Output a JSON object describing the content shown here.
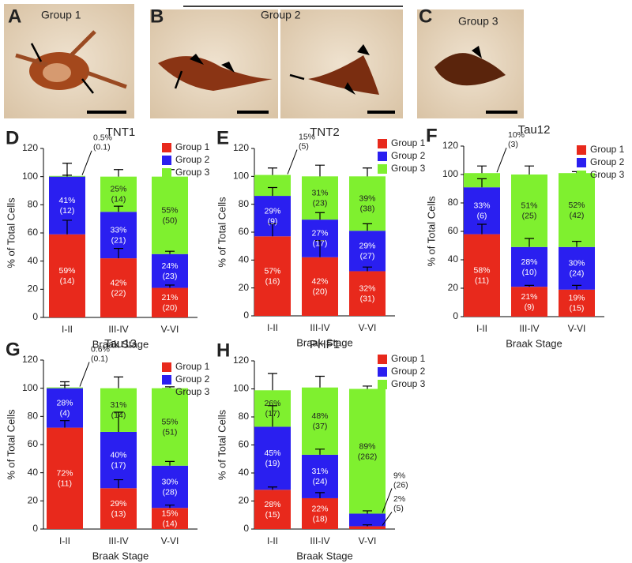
{
  "panels": [
    {
      "letter": "A",
      "title": "Group 1"
    },
    {
      "letter": "B",
      "title": "Group 2"
    },
    {
      "letter": "C",
      "title": "Group 3"
    }
  ],
  "chart_data": [
    {
      "type": "bar",
      "stacked": true,
      "panel": "D",
      "title": "TNT1",
      "categories": [
        "I-II",
        "III-IV",
        "V-VI"
      ],
      "xlabel": "Braak Stage",
      "ylabel": "% of Total Cells",
      "ylim": [
        0,
        120
      ],
      "yticks": [
        0,
        20,
        40,
        60,
        80,
        100,
        120
      ],
      "legend": "upper right",
      "series": [
        {
          "name": "Group 1",
          "color": "#e8291c",
          "values": [
            59,
            42,
            21
          ],
          "errors": [
            10,
            7,
            2
          ],
          "value_labels": [
            "59%",
            "42%",
            "21%"
          ],
          "count_labels": [
            "(14)",
            "(22)",
            "(20)"
          ]
        },
        {
          "name": "Group 2",
          "color": "#2a1ff0",
          "values": [
            41,
            33,
            24
          ],
          "errors": [
            1,
            4,
            2
          ],
          "value_labels": [
            "41%",
            "33%",
            "24%"
          ],
          "count_labels": [
            "(12)",
            "(21)",
            "(23)"
          ]
        },
        {
          "name": "Group 3",
          "color": "#7ff02f",
          "values": [
            0.5,
            25,
            55
          ],
          "errors": [
            9,
            5,
            5
          ],
          "value_labels": [
            "0.5%",
            "25%",
            "55%"
          ],
          "count_labels": [
            "(0.1)",
            "(14)",
            "(50)"
          ]
        }
      ]
    },
    {
      "type": "bar",
      "stacked": true,
      "panel": "E",
      "title": "TNT2",
      "categories": [
        "I-II",
        "III-IV",
        "V-VI"
      ],
      "xlabel": "Braak Stage",
      "ylabel": "% of Total Cells",
      "ylim": [
        0,
        120
      ],
      "yticks": [
        0,
        20,
        40,
        60,
        80,
        100,
        120
      ],
      "legend": "upper right",
      "series": [
        {
          "name": "Group 1",
          "color": "#e8291c",
          "values": [
            57,
            42,
            32
          ],
          "errors": [
            9,
            12,
            3
          ],
          "value_labels": [
            "57%",
            "42%",
            "32%"
          ],
          "count_labels": [
            "(16)",
            "(20)",
            "(31)"
          ]
        },
        {
          "name": "Group 2",
          "color": "#2a1ff0",
          "values": [
            29,
            27,
            29
          ],
          "errors": [
            6,
            5,
            5
          ],
          "value_labels": [
            "29%",
            "27%",
            "29%"
          ],
          "count_labels": [
            "(9)",
            "(17)",
            "(27)"
          ]
        },
        {
          "name": "Group 3",
          "color": "#7ff02f",
          "values": [
            15,
            31,
            39
          ],
          "errors": [
            5,
            8,
            6
          ],
          "value_labels": [
            "15%",
            "31%",
            "39%"
          ],
          "count_labels": [
            "(5)",
            "(23)",
            "(38)"
          ]
        }
      ]
    },
    {
      "type": "bar",
      "stacked": true,
      "panel": "F",
      "title": "Tau12",
      "categories": [
        "I-II",
        "III-IV",
        "V-VI"
      ],
      "xlabel": "Braak Stage",
      "ylabel": "% of Total Cells",
      "ylim": [
        0,
        120
      ],
      "yticks": [
        0,
        20,
        40,
        60,
        80,
        100,
        120
      ],
      "legend": "upper right",
      "series": [
        {
          "name": "Group 1",
          "color": "#e8291c",
          "values": [
            58,
            21,
            19
          ],
          "errors": [
            7,
            1,
            3
          ],
          "value_labels": [
            "58%",
            "21%",
            "19%"
          ],
          "count_labels": [
            "(11)",
            "(9)",
            "(15)"
          ]
        },
        {
          "name": "Group 2",
          "color": "#2a1ff0",
          "values": [
            33,
            28,
            30
          ],
          "errors": [
            6,
            6,
            4
          ],
          "value_labels": [
            "33%",
            "28%",
            "30%"
          ],
          "count_labels": [
            "(6)",
            "(10)",
            "(24)"
          ]
        },
        {
          "name": "Group 3",
          "color": "#7ff02f",
          "values": [
            10,
            51,
            52
          ],
          "errors": [
            5,
            6,
            1
          ],
          "value_labels": [
            "10%",
            "51%",
            "52%"
          ],
          "count_labels": [
            "(3)",
            "(25)",
            "(42)"
          ]
        }
      ]
    },
    {
      "type": "bar",
      "stacked": true,
      "panel": "G",
      "title": "Tau13",
      "categories": [
        "I-II",
        "III-IV",
        "V-VI"
      ],
      "xlabel": "Braak Stage",
      "ylabel": "% of Total Cells",
      "ylim": [
        0,
        120
      ],
      "yticks": [
        0,
        20,
        40,
        60,
        80,
        100,
        120
      ],
      "legend": "upper right",
      "series": [
        {
          "name": "Group 1",
          "color": "#e8291c",
          "values": [
            72,
            29,
            15
          ],
          "errors": [
            5,
            6,
            2
          ],
          "value_labels": [
            "72%",
            "29%",
            "15%"
          ],
          "count_labels": [
            "(11)",
            "(13)",
            "(14)"
          ]
        },
        {
          "name": "Group 2",
          "color": "#2a1ff0",
          "values": [
            28,
            40,
            30
          ],
          "errors": [
            2,
            14,
            3
          ],
          "value_labels": [
            "28%",
            "40%",
            "30%"
          ],
          "count_labels": [
            "(4)",
            "(17)",
            "(28)"
          ]
        },
        {
          "name": "Group 3",
          "color": "#7ff02f",
          "values": [
            0.6,
            31,
            55
          ],
          "errors": [
            4,
            8,
            1
          ],
          "value_labels": [
            "0.6%",
            "31%",
            "55%"
          ],
          "count_labels": [
            "(0.1)",
            "(14)",
            "(51)"
          ]
        }
      ]
    },
    {
      "type": "bar",
      "stacked": true,
      "panel": "H",
      "title": "PHF1",
      "categories": [
        "I-II",
        "III-IV",
        "V-VI"
      ],
      "xlabel": "Braak Stage",
      "ylabel": "% of Total Cells",
      "ylim": [
        0,
        120
      ],
      "yticks": [
        0,
        20,
        40,
        60,
        80,
        100,
        120
      ],
      "legend": "upper right",
      "series": [
        {
          "name": "Group 1",
          "color": "#e8291c",
          "values": [
            28,
            22,
            2
          ],
          "errors": [
            2,
            4,
            1
          ],
          "value_labels": [
            "28%",
            "22%",
            "2%"
          ],
          "count_labels": [
            "(15)",
            "(18)",
            "(5)"
          ]
        },
        {
          "name": "Group 2",
          "color": "#2a1ff0",
          "values": [
            45,
            31,
            9
          ],
          "errors": [
            15,
            4,
            2
          ],
          "value_labels": [
            "45%",
            "31%",
            "9%"
          ],
          "count_labels": [
            "(19)",
            "(24)",
            "(26)"
          ]
        },
        {
          "name": "Group 3",
          "color": "#7ff02f",
          "values": [
            26,
            48,
            89
          ],
          "errors": [
            12,
            8,
            2
          ],
          "value_labels": [
            "26%",
            "48%",
            "89%"
          ],
          "count_labels": [
            "(17)",
            "(37)",
            "(262)"
          ]
        }
      ]
    }
  ]
}
